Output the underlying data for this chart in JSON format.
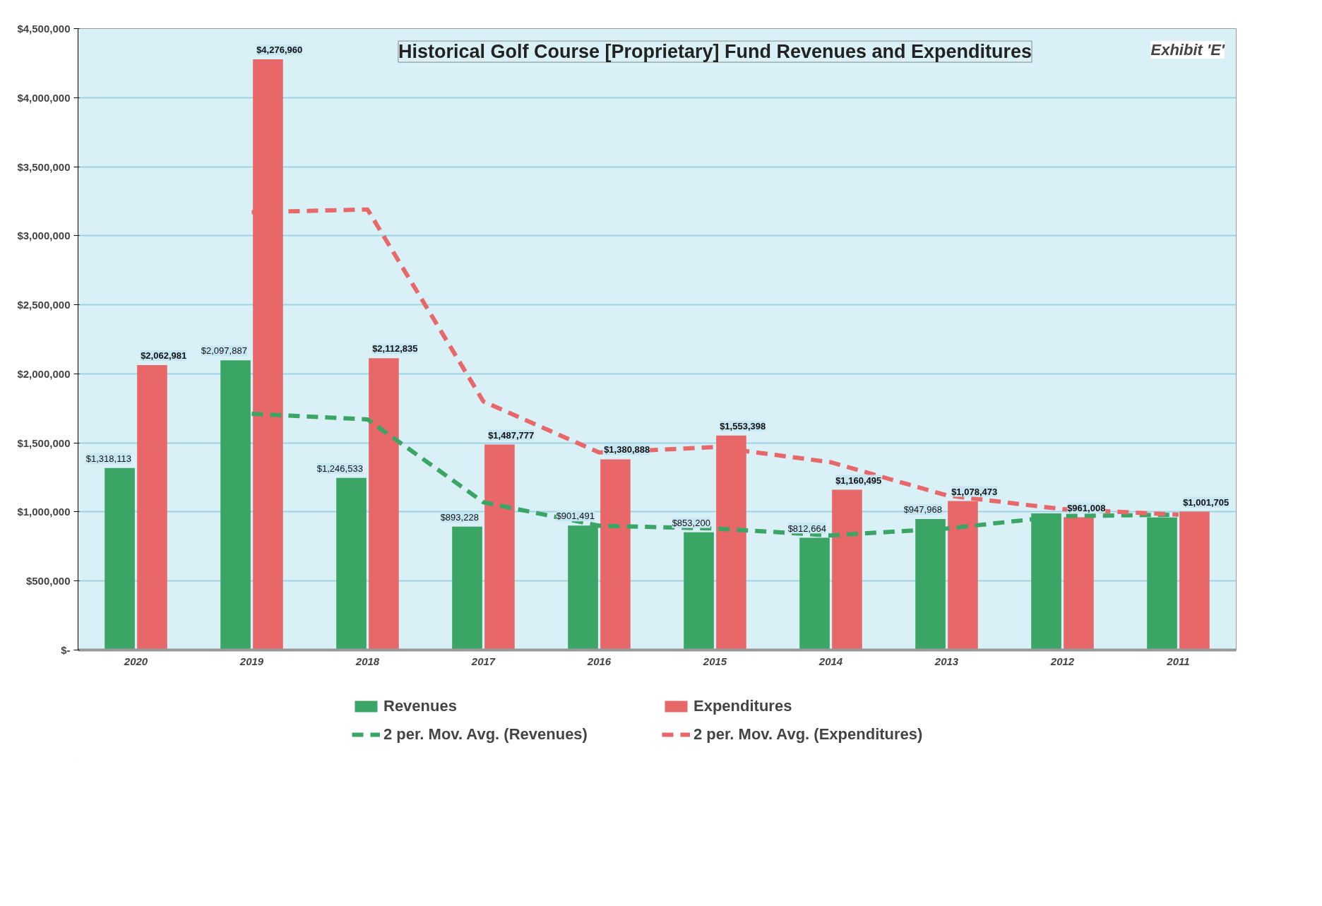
{
  "chart_data": {
    "type": "bar",
    "title": "Historical Golf Course [Proprietary] Fund Revenues and Expenditures",
    "annotations": [
      "Exhibit 'E'"
    ],
    "categories": [
      "2020",
      "2019",
      "2018",
      "2017",
      "2016",
      "2015",
      "2014",
      "2013",
      "2012",
      "2011"
    ],
    "series": [
      {
        "name": "Revenues",
        "color": "#3aa564",
        "values": [
          1318113,
          2097887,
          1246533,
          893228,
          901491,
          853200,
          812664,
          947968,
          990000,
          960000
        ],
        "value_labels": [
          "$1,318,113",
          "$2,097,887",
          "$1,246,533",
          "$893,228",
          "$901,491",
          "$853,200",
          "$812,664",
          "$947,968",
          null,
          null
        ]
      },
      {
        "name": "Expenditures",
        "color": "#e8686a",
        "values": [
          2062981,
          4276960,
          2112835,
          1487777,
          1380888,
          1553398,
          1160495,
          1078473,
          961008,
          1001705
        ],
        "value_labels": [
          "$2,062,981",
          "$4,276,960",
          "$2,112,835",
          "$1,487,777",
          "$1,380,888",
          "$1,553,398",
          "$1,160,495",
          "$1,078,473",
          "$961,008",
          "$1,001,705"
        ]
      },
      {
        "name": "2 per. Mov. Avg. (Revenues)",
        "type": "line",
        "line_style": "dashed",
        "color": "#3aa564",
        "values": [
          null,
          1710000,
          1670000,
          1070000,
          900000,
          880000,
          830000,
          880000,
          970000,
          980000
        ]
      },
      {
        "name": "2 per. Mov. Avg. (Expenditures)",
        "type": "line",
        "line_style": "dashed",
        "color": "#e8686a",
        "values": [
          null,
          3170000,
          3190000,
          1800000,
          1430000,
          1470000,
          1360000,
          1120000,
          1020000,
          980000
        ]
      }
    ],
    "ylim": [
      0,
      4500000
    ],
    "yticks": [
      {
        "value": 0,
        "label": "$-"
      },
      {
        "value": 500000,
        "label": "$500,000"
      },
      {
        "value": 1000000,
        "label": "$1,000,000"
      },
      {
        "value": 1500000,
        "label": "$1,500,000"
      },
      {
        "value": 2000000,
        "label": "$2,000,000"
      },
      {
        "value": 2500000,
        "label": "$2,500,000"
      },
      {
        "value": 3000000,
        "label": "$3,000,000"
      },
      {
        "value": 3500000,
        "label": "$3,500,000"
      },
      {
        "value": 4000000,
        "label": "$4,000,000"
      },
      {
        "value": 4500000,
        "label": "$4,500,000"
      }
    ],
    "grid": "y",
    "legend": "bottom"
  }
}
